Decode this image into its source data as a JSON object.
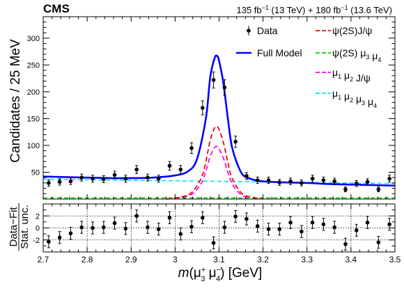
{
  "header": {
    "experiment": "CMS",
    "lumi_text": [
      "135 fb",
      "−1",
      " (13 TeV) + 180 fb",
      "−1",
      " (13.6 TeV)"
    ]
  },
  "chart_data": [
    {
      "type": "scatter",
      "panel": "main",
      "ylabel": "Candidates / 25 MeV",
      "xlim": [
        2.7,
        3.5
      ],
      "ylim": [
        0,
        340
      ],
      "y_ticks": [
        50,
        100,
        150,
        200,
        250,
        300
      ],
      "x_ticks": [
        2.7,
        2.8,
        2.9,
        3.0,
        3.1,
        3.2,
        3.3,
        3.4,
        3.5
      ],
      "grid": false,
      "legend_position": "top-right",
      "legend": [
        {
          "label": "Data",
          "style": "marker"
        },
        {
          "label": "ψ(2S)J/ψ",
          "style": "dashed",
          "color": "#ff0000"
        },
        {
          "label": "Full Model",
          "style": "solid",
          "color": "#0000ff"
        },
        {
          "label": "ψ(2S) μ₃ μ₄",
          "style": "dashed",
          "color": "#00cc00"
        },
        {
          "label": "μ₁ μ₂ J/ψ",
          "style": "dashed",
          "color": "#ff00ff"
        },
        {
          "label": "μ₁ μ₂ μ₃ μ₄",
          "style": "dashed",
          "color": "#00e5e5"
        }
      ],
      "series": [
        {
          "name": "Data",
          "x": [
            2.7125,
            2.7375,
            2.7625,
            2.7875,
            2.8125,
            2.8375,
            2.8625,
            2.8875,
            2.9125,
            2.9375,
            2.9625,
            2.9875,
            3.0125,
            3.0375,
            3.0625,
            3.0875,
            3.1125,
            3.1375,
            3.1625,
            3.1875,
            3.2125,
            3.2375,
            3.2625,
            3.2875,
            3.3125,
            3.3375,
            3.3625,
            3.3875,
            3.4125,
            3.4375,
            3.4625,
            3.4875
          ],
          "y": [
            30,
            32,
            33,
            40,
            38,
            37,
            45,
            38,
            55,
            40,
            38,
            62,
            55,
            95,
            170,
            222,
            208,
            107,
            43,
            35,
            35,
            31,
            33,
            30,
            38,
            35,
            33,
            18,
            29,
            32,
            18,
            38
          ],
          "yerr": [
            6,
            6,
            6,
            6.5,
            6.5,
            6.5,
            7,
            6.5,
            7.5,
            6.5,
            6.5,
            8,
            7.5,
            10,
            13,
            15,
            14.5,
            10.5,
            6.5,
            6,
            6,
            5.5,
            6,
            5.5,
            6.5,
            6,
            6,
            4.5,
            5.5,
            6,
            4.5,
            6.5
          ]
        },
        {
          "name": "Full Model",
          "x": [
            2.7,
            2.75,
            2.8,
            2.85,
            2.9,
            2.95,
            3.0,
            3.03,
            3.05,
            3.07,
            3.08,
            3.09,
            3.095,
            3.1,
            3.11,
            3.12,
            3.13,
            3.15,
            3.17,
            3.2,
            3.25,
            3.3,
            3.35,
            3.4,
            3.45,
            3.5
          ],
          "y": [
            42,
            41,
            40,
            39,
            39,
            40,
            44,
            52,
            75,
            150,
            228,
            263,
            267,
            258,
            215,
            150,
            95,
            50,
            38,
            33,
            31,
            30,
            28,
            27,
            26,
            25
          ]
        },
        {
          "name": "ψ(2S)J/ψ",
          "x": [
            2.98,
            3.0,
            3.02,
            3.04,
            3.06,
            3.07,
            3.08,
            3.09,
            3.095,
            3.1,
            3.11,
            3.12,
            3.13,
            3.15,
            3.17,
            3.2
          ],
          "y": [
            0,
            2,
            5,
            14,
            40,
            70,
            110,
            133,
            135,
            130,
            105,
            68,
            38,
            12,
            4,
            0
          ]
        },
        {
          "name": "μ₁ μ₂ J/ψ",
          "x": [
            3.0,
            3.02,
            3.04,
            3.06,
            3.07,
            3.08,
            3.09,
            3.095,
            3.1,
            3.11,
            3.12,
            3.13,
            3.15,
            3.17
          ],
          "y": [
            2,
            4,
            10,
            30,
            52,
            80,
            96,
            98,
            94,
            76,
            50,
            28,
            8,
            2
          ]
        },
        {
          "name": "μ₁ μ₂ μ₃ μ₄",
          "x": [
            2.7,
            2.8,
            2.9,
            3.0,
            3.1,
            3.2,
            3.3,
            3.4,
            3.5
          ],
          "y": [
            37,
            36,
            35,
            34,
            33,
            32,
            31,
            30,
            29
          ]
        },
        {
          "name": "ψ(2S) μ₃ μ₄",
          "x": [
            2.7,
            3.5
          ],
          "y": [
            2,
            2
          ]
        }
      ]
    },
    {
      "type": "scatter",
      "panel": "pull",
      "ylabel": [
        "Data−Fit",
        "Stat. unc."
      ],
      "xlabel_parts": [
        "m",
        "(μ",
        "+",
        "3",
        " μ",
        "−",
        "4",
        ") [GeV]"
      ],
      "xlim": [
        2.7,
        3.5
      ],
      "ylim": [
        -4,
        4
      ],
      "y_ticks": [
        -2,
        0,
        2
      ],
      "x_ticks": [
        "2.7",
        "2.8",
        "2.9",
        "3",
        "3.1",
        "3.2",
        "3.3",
        "3.4",
        "3.5"
      ],
      "grid": true,
      "series": [
        {
          "name": "Pull",
          "x": [
            2.7125,
            2.7375,
            2.7625,
            2.7875,
            2.8125,
            2.8375,
            2.8625,
            2.8875,
            2.9125,
            2.9375,
            2.9625,
            2.9875,
            3.0125,
            3.0375,
            3.0625,
            3.0875,
            3.1125,
            3.1375,
            3.1625,
            3.1875,
            3.2125,
            3.2375,
            3.2625,
            3.2875,
            3.3125,
            3.3375,
            3.3625,
            3.3875,
            3.4125,
            3.4375,
            3.4625,
            3.4875
          ],
          "y": [
            -2.3,
            -1.6,
            -0.9,
            0.1,
            0,
            0.1,
            0.8,
            -0.1,
            2.0,
            0.1,
            -0.2,
            1.7,
            -1.0,
            0.2,
            1.7,
            -2.5,
            0.1,
            1.9,
            1.5,
            0.3,
            -0.2,
            -0.2,
            0.9,
            -0.6,
            0.9,
            0.6,
            0.1,
            -2.7,
            -0.4,
            0.9,
            -2.4,
            0.6
          ],
          "yerr": [
            1,
            1,
            1,
            1,
            1,
            1,
            1,
            1,
            1,
            1,
            1,
            1,
            1,
            1,
            1,
            1,
            1,
            1,
            1,
            1,
            1,
            1,
            1,
            1,
            1,
            1,
            1,
            1,
            1,
            1,
            1,
            1
          ]
        }
      ]
    }
  ]
}
